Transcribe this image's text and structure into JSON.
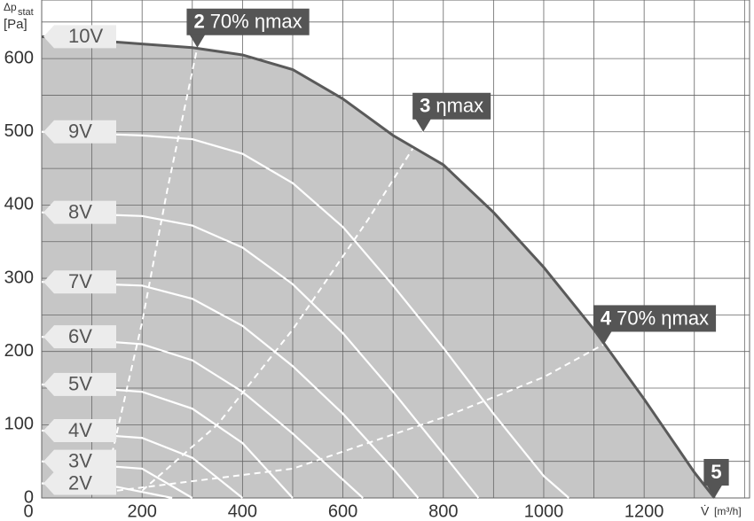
{
  "chart_data": {
    "type": "line",
    "ylabel_symbol": "Δp",
    "ylabel_subscript": "stat",
    "ylabel_unit": "[Pa]",
    "xlabel_symbol": "V̇",
    "xlabel_unit": "[m³/h]",
    "xlim": [
      0,
      1410
    ],
    "ylim": [
      0,
      680
    ],
    "xticks": [
      0,
      200,
      400,
      600,
      800,
      1000,
      1200
    ],
    "yticks": [
      0,
      100,
      200,
      300,
      400,
      500,
      600
    ],
    "xgrid": [
      100,
      200,
      300,
      400,
      500,
      600,
      700,
      800,
      900,
      1000,
      1100,
      1200,
      1300,
      1400
    ],
    "ygrid": [
      50,
      100,
      150,
      200,
      250,
      300,
      350,
      400,
      450,
      500,
      550,
      600,
      650
    ],
    "area_color": "#c6c6c6",
    "series": [
      {
        "name": "10V",
        "color": "#5a5a5a",
        "x": [
          0,
          200,
          300,
          400,
          500,
          600,
          700,
          800,
          900,
          1000,
          1100,
          1200,
          1300,
          1340
        ],
        "values": [
          630,
          620,
          615,
          605,
          585,
          545,
          495,
          455,
          390,
          315,
          230,
          135,
          35,
          0
        ]
      },
      {
        "name": "9V",
        "color": "#ffffff",
        "x": [
          0,
          200,
          300,
          400,
          500,
          600,
          700,
          800,
          900,
          1000,
          1050
        ],
        "values": [
          500,
          495,
          490,
          470,
          430,
          370,
          290,
          205,
          115,
          30,
          0
        ]
      },
      {
        "name": "8V",
        "color": "#ffffff",
        "x": [
          0,
          200,
          300,
          400,
          500,
          600,
          700,
          800,
          870
        ],
        "values": [
          390,
          385,
          372,
          342,
          292,
          225,
          145,
          60,
          0
        ]
      },
      {
        "name": "7V",
        "color": "#ffffff",
        "x": [
          0,
          200,
          300,
          400,
          500,
          600,
          700,
          750
        ],
        "values": [
          295,
          290,
          272,
          235,
          180,
          115,
          40,
          0
        ]
      },
      {
        "name": "6V",
        "color": "#ffffff",
        "x": [
          0,
          200,
          300,
          400,
          500,
          600,
          640
        ],
        "values": [
          220,
          210,
          188,
          145,
          88,
          25,
          0
        ]
      },
      {
        "name": "5V",
        "color": "#ffffff",
        "x": [
          0,
          200,
          300,
          400,
          500
        ],
        "values": [
          155,
          145,
          122,
          75,
          0
        ]
      },
      {
        "name": "4V",
        "color": "#ffffff",
        "x": [
          0,
          200,
          300,
          400
        ],
        "values": [
          92,
          82,
          55,
          0
        ]
      },
      {
        "name": "3V",
        "color": "#ffffff",
        "x": [
          0,
          200,
          300
        ],
        "values": [
          50,
          40,
          0
        ]
      },
      {
        "name": "2V",
        "color": "#ffffff",
        "x": [
          0,
          150,
          260
        ],
        "values": [
          20,
          15,
          0
        ]
      }
    ],
    "dashed_lines": [
      {
        "x": [
          140,
          200,
          250,
          290,
          310
        ],
        "values": [
          60,
          240,
          420,
          550,
          615
        ]
      },
      {
        "x": [
          200,
          350,
          500,
          650,
          760
        ],
        "values": [
          10,
          100,
          230,
          380,
          500
        ]
      },
      {
        "x": [
          150,
          500,
          800,
          1000,
          1120
        ],
        "values": [
          10,
          40,
          110,
          165,
          210
        ]
      }
    ],
    "annotations": [
      {
        "number": "2",
        "text": "70% ηmax",
        "x": 310,
        "y": 615
      },
      {
        "number": "3",
        "text": "ηmax",
        "x": 760,
        "y": 500
      },
      {
        "number": "4",
        "text": "70% ηmax",
        "x": 1120,
        "y": 210
      },
      {
        "number": "5",
        "x": 1340,
        "y": 0
      }
    ]
  }
}
